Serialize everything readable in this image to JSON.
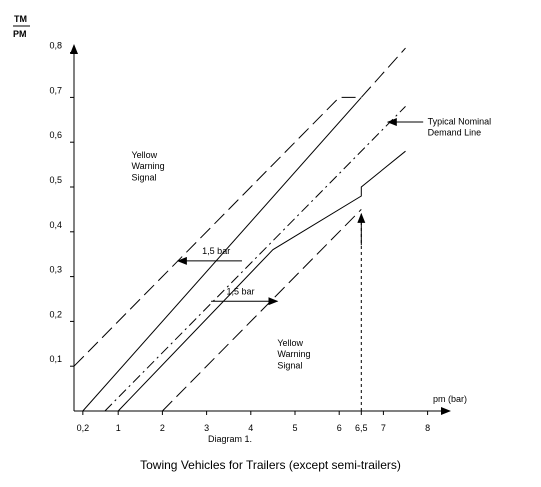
{
  "chart_data": {
    "type": "line",
    "title": "Towing Vehicles for Trailers (except semi-trailers)",
    "diagram_label": "Diagram 1.",
    "ylabel_top": "TM",
    "ylabel_bottom": "PM",
    "xlabel": "pm  (bar)",
    "xlim": [
      0,
      8.7
    ],
    "ylim": [
      0,
      0.8
    ],
    "x_ticks": [
      {
        "value": 0.2,
        "label": "0,2"
      },
      {
        "value": 1,
        "label": "1"
      },
      {
        "value": 2,
        "label": "2"
      },
      {
        "value": 3,
        "label": "3"
      },
      {
        "value": 4,
        "label": "4"
      },
      {
        "value": 5,
        "label": "5"
      },
      {
        "value": 6,
        "label": "6"
      },
      {
        "value": 6.5,
        "label": "6,5"
      },
      {
        "value": 7,
        "label": "7"
      },
      {
        "value": 8,
        "label": "8"
      }
    ],
    "y_ticks": [
      {
        "value": 0.1,
        "label": "0,1"
      },
      {
        "value": 0.2,
        "label": "0,2"
      },
      {
        "value": 0.3,
        "label": "0,3"
      },
      {
        "value": 0.4,
        "label": "0,4"
      },
      {
        "value": 0.5,
        "label": "0,5"
      },
      {
        "value": 0.6,
        "label": "0,6"
      },
      {
        "value": 0.7,
        "label": "0,7"
      },
      {
        "value": 0.8,
        "label": "0,8"
      }
    ],
    "series": [
      {
        "style": "long-dash",
        "points": [
          [
            0,
            0.1
          ],
          [
            6,
            0.7
          ],
          [
            6.5,
            0.7
          ],
          [
            7.5,
            0.81
          ]
        ]
      },
      {
        "style": "solid",
        "points": [
          [
            0.2,
            0
          ],
          [
            6.5,
            0.7
          ]
        ]
      },
      {
        "style": "dash-dot",
        "points": [
          [
            0.7,
            0
          ],
          [
            7.5,
            0.68
          ]
        ]
      },
      {
        "style": "solid",
        "points": [
          [
            1,
            0
          ],
          [
            4.5,
            0.36
          ],
          [
            6.5,
            0.48
          ],
          [
            6.5,
            0.5
          ],
          [
            7.5,
            0.58
          ]
        ]
      },
      {
        "style": "long-dash",
        "points": [
          [
            2,
            0
          ],
          [
            6.5,
            0.45
          ]
        ]
      }
    ],
    "guide_line": {
      "x": 6.5,
      "y_from": 0,
      "y_to": 0.44
    },
    "annotations": [
      {
        "text": "Yellow",
        "x": 1.3,
        "y": 0.565
      },
      {
        "text": "Warning",
        "x": 1.3,
        "y": 0.54
      },
      {
        "text": "Signal",
        "x": 1.3,
        "y": 0.515
      },
      {
        "text": "Yellow",
        "x": 4.6,
        "y": 0.145
      },
      {
        "text": "Warning",
        "x": 4.6,
        "y": 0.12
      },
      {
        "text": "Signal",
        "x": 4.6,
        "y": 0.095
      },
      {
        "text": "Typical Nominal",
        "x": 8.0,
        "y": 0.64
      },
      {
        "text": "Demand Line",
        "x": 8.0,
        "y": 0.615
      },
      {
        "text": "1,5 bar",
        "x": 2.9,
        "y": 0.35
      },
      {
        "text": "1,5 bar",
        "x": 3.45,
        "y": 0.26
      }
    ],
    "arrows": [
      {
        "from": [
          3.8,
          0.335
        ],
        "to": [
          2.35,
          0.335
        ]
      },
      {
        "from": [
          3.1,
          0.245
        ],
        "to": [
          4.6,
          0.245
        ]
      },
      {
        "from": [
          7.9,
          0.645
        ],
        "to": [
          7.1,
          0.645
        ]
      },
      {
        "from": [
          6.5,
          0.37
        ],
        "to": [
          6.5,
          0.44
        ]
      }
    ],
    "grid": false,
    "legend": "none"
  }
}
